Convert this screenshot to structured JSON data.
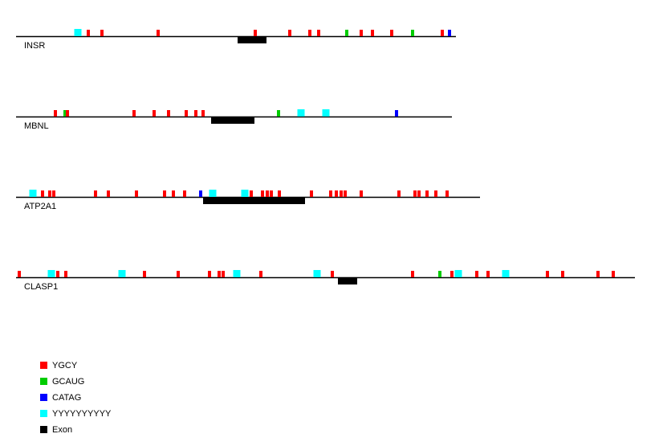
{
  "colors": {
    "YGCY": "#ff0000",
    "GCAUG": "#00cc00",
    "CATAG": "#0000ff",
    "YYYYYYYYYY": "#00ffff",
    "Exon": "#000000",
    "line": "#000000"
  },
  "legend": [
    {
      "key": "YGCY",
      "label": "YGCY"
    },
    {
      "key": "GCAUG",
      "label": "GCAUG"
    },
    {
      "key": "CATAG",
      "label": "CATAG"
    },
    {
      "key": "YYYYYYYYYY",
      "label": "YYYYYYYYYY"
    },
    {
      "key": "Exon",
      "label": "Exon"
    }
  ],
  "genes": [
    {
      "name": "INSR",
      "length": 548,
      "exons": [
        [
          276,
          312
        ]
      ],
      "motifs": [
        {
          "type": "YYYYYYYYYY",
          "pos": 77
        },
        {
          "type": "YGCY",
          "pos": 90
        },
        {
          "type": "YGCY",
          "pos": 107
        },
        {
          "type": "YGCY",
          "pos": 177
        },
        {
          "type": "YGCY",
          "pos": 298
        },
        {
          "type": "YGCY",
          "pos": 341
        },
        {
          "type": "YGCY",
          "pos": 366
        },
        {
          "type": "YGCY",
          "pos": 377
        },
        {
          "type": "GCAUG",
          "pos": 412
        },
        {
          "type": "YGCY",
          "pos": 430
        },
        {
          "type": "YGCY",
          "pos": 444
        },
        {
          "type": "YGCY",
          "pos": 468
        },
        {
          "type": "GCAUG",
          "pos": 494
        },
        {
          "type": "YGCY",
          "pos": 531
        },
        {
          "type": "CATAG",
          "pos": 540
        }
      ]
    },
    {
      "name": "MBNL",
      "length": 543,
      "exons": [
        [
          243,
          297
        ]
      ],
      "motifs": [
        {
          "type": "YGCY",
          "pos": 49
        },
        {
          "type": "GCAUG",
          "pos": 61
        },
        {
          "type": "YGCY",
          "pos": 64
        },
        {
          "type": "YGCY",
          "pos": 147
        },
        {
          "type": "YGCY",
          "pos": 172
        },
        {
          "type": "YGCY",
          "pos": 190
        },
        {
          "type": "YGCY",
          "pos": 212
        },
        {
          "type": "YGCY",
          "pos": 224
        },
        {
          "type": "YGCY",
          "pos": 233
        },
        {
          "type": "GCAUG",
          "pos": 327
        },
        {
          "type": "YYYYYYYYYY",
          "pos": 355
        },
        {
          "type": "YYYYYYYYYY",
          "pos": 386
        },
        {
          "type": "CATAG",
          "pos": 474
        }
      ]
    },
    {
      "name": "ATP2A1",
      "length": 578,
      "exons": [
        [
          233,
          360
        ]
      ],
      "motifs": [
        {
          "type": "YYYYYYYYYY",
          "pos": 21
        },
        {
          "type": "YGCY",
          "pos": 33
        },
        {
          "type": "YGCY",
          "pos": 42
        },
        {
          "type": "YGCY",
          "pos": 47
        },
        {
          "type": "YGCY",
          "pos": 99
        },
        {
          "type": "YGCY",
          "pos": 115
        },
        {
          "type": "YGCY",
          "pos": 150
        },
        {
          "type": "YGCY",
          "pos": 185
        },
        {
          "type": "YGCY",
          "pos": 196
        },
        {
          "type": "YGCY",
          "pos": 210
        },
        {
          "type": "CATAG",
          "pos": 230
        },
        {
          "type": "YYYYYYYYYY",
          "pos": 245
        },
        {
          "type": "YYYYYYYYYY",
          "pos": 285
        },
        {
          "type": "YGCY",
          "pos": 293
        },
        {
          "type": "YGCY",
          "pos": 307
        },
        {
          "type": "YGCY",
          "pos": 313
        },
        {
          "type": "YGCY",
          "pos": 318
        },
        {
          "type": "YGCY",
          "pos": 328
        },
        {
          "type": "YGCY",
          "pos": 368
        },
        {
          "type": "YGCY",
          "pos": 392
        },
        {
          "type": "YGCY",
          "pos": 399
        },
        {
          "type": "YGCY",
          "pos": 405
        },
        {
          "type": "YGCY",
          "pos": 410
        },
        {
          "type": "YGCY",
          "pos": 430
        },
        {
          "type": "YGCY",
          "pos": 477
        },
        {
          "type": "YGCY",
          "pos": 497
        },
        {
          "type": "YGCY",
          "pos": 502
        },
        {
          "type": "YGCY",
          "pos": 512
        },
        {
          "type": "YGCY",
          "pos": 523
        },
        {
          "type": "YGCY",
          "pos": 537
        }
      ]
    },
    {
      "name": "CLASP1",
      "length": 771,
      "exons": [
        [
          401,
          425
        ]
      ],
      "motifs": [
        {
          "type": "YGCY",
          "pos": 4
        },
        {
          "type": "YYYYYYYYYY",
          "pos": 44
        },
        {
          "type": "YGCY",
          "pos": 52
        },
        {
          "type": "YGCY",
          "pos": 62
        },
        {
          "type": "YYYYYYYYYY",
          "pos": 132
        },
        {
          "type": "YGCY",
          "pos": 160
        },
        {
          "type": "YGCY",
          "pos": 202
        },
        {
          "type": "YGCY",
          "pos": 241
        },
        {
          "type": "YGCY",
          "pos": 253
        },
        {
          "type": "YGCY",
          "pos": 258
        },
        {
          "type": "YYYYYYYYYY",
          "pos": 275
        },
        {
          "type": "YGCY",
          "pos": 305
        },
        {
          "type": "YYYYYYYYYY",
          "pos": 375
        },
        {
          "type": "YGCY",
          "pos": 394
        },
        {
          "type": "YGCY",
          "pos": 494
        },
        {
          "type": "GCAUG",
          "pos": 528
        },
        {
          "type": "YGCY",
          "pos": 543
        },
        {
          "type": "YYYYYYYYYY",
          "pos": 551
        },
        {
          "type": "YGCY",
          "pos": 574
        },
        {
          "type": "YGCY",
          "pos": 588
        },
        {
          "type": "YYYYYYYYYY",
          "pos": 610
        },
        {
          "type": "YGCY",
          "pos": 662
        },
        {
          "type": "YGCY",
          "pos": 681
        },
        {
          "type": "YGCY",
          "pos": 725
        },
        {
          "type": "YGCY",
          "pos": 744
        }
      ]
    }
  ]
}
